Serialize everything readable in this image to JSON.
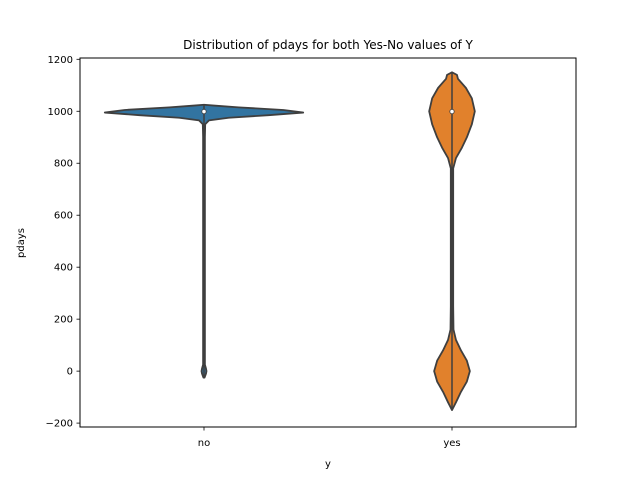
{
  "chart_data": {
    "type": "violin",
    "title": "Distribution of pdays for both Yes-No values of Y",
    "xlabel": "y",
    "ylabel": "pdays",
    "categories": [
      "no",
      "yes"
    ],
    "ylim": [
      -215,
      1205
    ],
    "yticks": [
      -200,
      0,
      200,
      400,
      600,
      800,
      1000,
      1200
    ],
    "grid": false,
    "legend": "none",
    "series": [
      {
        "category": "no",
        "color": "#3274a1",
        "median": 999,
        "q1": 999,
        "q3": 999,
        "min": -25,
        "max": 1025,
        "density_profile": [
          [
            -25,
            0.005
          ],
          [
            -10,
            0.02
          ],
          [
            0,
            0.025
          ],
          [
            10,
            0.02
          ],
          [
            25,
            0.009
          ],
          [
            100,
            0.009
          ],
          [
            400,
            0.009
          ],
          [
            700,
            0.009
          ],
          [
            900,
            0.009
          ],
          [
            950,
            0.012
          ],
          [
            965,
            0.05
          ],
          [
            975,
            0.25
          ],
          [
            985,
            0.65
          ],
          [
            995,
            1.0
          ],
          [
            1005,
            0.8
          ],
          [
            1015,
            0.35
          ],
          [
            1022,
            0.1
          ],
          [
            1025,
            0.0
          ]
        ]
      },
      {
        "category": "yes",
        "color": "#e1812c",
        "median": 999,
        "q1": 999,
        "q3": 999,
        "min": -150,
        "max": 1150,
        "density_profile": [
          [
            -150,
            0.0
          ],
          [
            -120,
            0.04
          ],
          [
            -80,
            0.09
          ],
          [
            -40,
            0.15
          ],
          [
            0,
            0.18
          ],
          [
            40,
            0.15
          ],
          [
            80,
            0.09
          ],
          [
            120,
            0.04
          ],
          [
            160,
            0.015
          ],
          [
            250,
            0.012
          ],
          [
            500,
            0.012
          ],
          [
            780,
            0.012
          ],
          [
            820,
            0.04
          ],
          [
            860,
            0.1
          ],
          [
            900,
            0.15
          ],
          [
            950,
            0.2
          ],
          [
            1000,
            0.23
          ],
          [
            1050,
            0.2
          ],
          [
            1090,
            0.14
          ],
          [
            1125,
            0.06
          ],
          [
            1140,
            0.05
          ],
          [
            1150,
            0.0
          ]
        ]
      }
    ]
  }
}
